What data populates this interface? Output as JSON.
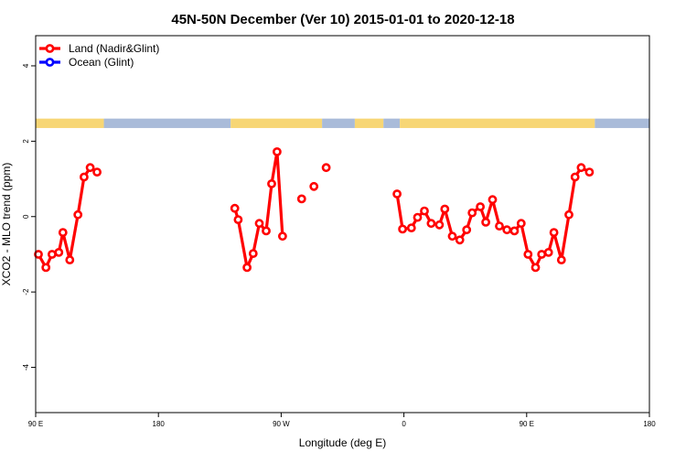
{
  "chart_data": {
    "type": "line",
    "title": "45N-50N December (Ver 10)   2015-01-01 to 2020-12-18",
    "xlabel": "Longitude (deg E)",
    "ylabel": "XCO2 - MLO trend (ppm)",
    "xlim": [
      90,
      540
    ],
    "ylim": [
      -5.2,
      4.8
    ],
    "x_ticks": [
      {
        "value": 90,
        "label": "90 E"
      },
      {
        "value": 180,
        "label": "180"
      },
      {
        "value": 270,
        "label": "90 W"
      },
      {
        "value": 360,
        "label": "0"
      },
      {
        "value": 450,
        "label": "90 E"
      },
      {
        "value": 540,
        "label": "180"
      }
    ],
    "y_ticks": [
      {
        "value": 4,
        "label": "4"
      },
      {
        "value": 2,
        "label": "2"
      },
      {
        "value": 0,
        "label": "0"
      },
      {
        "value": -2,
        "label": "-2"
      },
      {
        "value": -4,
        "label": "-4"
      }
    ],
    "legend": {
      "position": "top-left",
      "entries": [
        {
          "name": "Land (Nadir&Glint)",
          "color": "#ff0000"
        },
        {
          "name": "Ocean (Glint)",
          "color": "#0000ff"
        }
      ]
    },
    "land_ocean_strip": {
      "y_range": [
        2.35,
        2.6
      ],
      "land_color": "#f7d675",
      "ocean_color": "#a9bbd9",
      "segments": [
        {
          "from": 90,
          "to": 140,
          "surface": "land"
        },
        {
          "from": 140,
          "to": 233,
          "surface": "ocean"
        },
        {
          "from": 233,
          "to": 300,
          "surface": "land"
        },
        {
          "from": 300,
          "to": 324,
          "surface": "ocean"
        },
        {
          "from": 324,
          "to": 345,
          "surface": "land"
        },
        {
          "from": 345,
          "to": 357,
          "surface": "ocean"
        },
        {
          "from": 357,
          "to": 500,
          "surface": "land"
        },
        {
          "from": 500,
          "to": 540,
          "surface": "ocean"
        }
      ]
    },
    "series": [
      {
        "name": "Land (Nadir&Glint)",
        "color": "#ff0000",
        "segments": [
          [
            [
              92.0,
              -1.0
            ],
            [
              97.5,
              -1.35
            ],
            [
              102.0,
              -1.0
            ],
            [
              107.0,
              -0.95
            ],
            [
              110.0,
              -0.42
            ],
            [
              115.0,
              -1.15
            ],
            [
              121.0,
              0.05
            ],
            [
              125.5,
              1.05
            ],
            [
              130.0,
              1.3
            ],
            [
              135.0,
              1.18
            ]
          ],
          [
            [
              236.0,
              0.22
            ],
            [
              238.5,
              -0.08
            ],
            [
              245.0,
              -1.35
            ],
            [
              249.5,
              -0.98
            ],
            [
              254.0,
              -0.18
            ],
            [
              259.0,
              -0.38
            ],
            [
              263.0,
              0.87
            ],
            [
              267.0,
              1.72
            ],
            [
              271.0,
              -0.52
            ]
          ],
          [
            [
              285.0,
              0.47
            ]
          ],
          [
            [
              294.0,
              0.8
            ]
          ],
          [
            [
              303.0,
              1.3
            ]
          ],
          [
            [
              355.0,
              0.6
            ],
            [
              359.0,
              -0.33
            ],
            [
              365.5,
              -0.3
            ],
            [
              370.0,
              -0.02
            ],
            [
              375.0,
              0.15
            ],
            [
              380.0,
              -0.18
            ],
            [
              386.0,
              -0.22
            ],
            [
              390.0,
              0.2
            ],
            [
              395.5,
              -0.52
            ],
            [
              401.0,
              -0.62
            ],
            [
              406.0,
              -0.35
            ],
            [
              410.0,
              0.1
            ],
            [
              416.0,
              0.26
            ],
            [
              420.0,
              -0.15
            ],
            [
              425.0,
              0.45
            ],
            [
              430.0,
              -0.25
            ],
            [
              435.5,
              -0.35
            ],
            [
              441.0,
              -0.38
            ],
            [
              446.0,
              -0.18
            ],
            [
              451.0,
              -1.0
            ],
            [
              456.5,
              -1.35
            ],
            [
              461.0,
              -1.0
            ],
            [
              466.0,
              -0.95
            ],
            [
              470.0,
              -0.42
            ],
            [
              475.5,
              -1.15
            ],
            [
              481.0,
              0.05
            ],
            [
              485.5,
              1.05
            ],
            [
              490.0,
              1.3
            ],
            [
              496.0,
              1.18
            ]
          ]
        ]
      },
      {
        "name": "Ocean (Glint)",
        "color": "#0000ff",
        "segments": []
      }
    ],
    "grid": false
  }
}
